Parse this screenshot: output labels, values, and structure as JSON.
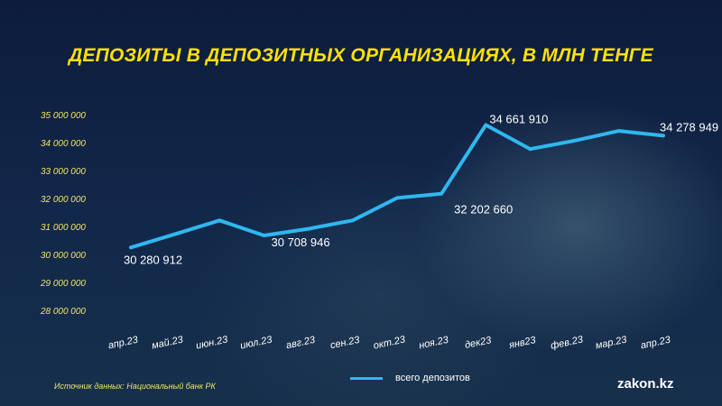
{
  "chart_data": {
    "type": "line",
    "title": "ДЕПОЗИТЫ В ДЕПОЗИТНЫХ ОРГАНИЗАЦИЯХ, В МЛН ТЕНГЕ",
    "categories": [
      "апр.23",
      "май.23",
      "июн.23",
      "июл.23",
      "авг.23",
      "сен.23",
      "окт.23",
      "ноя.23",
      "дек23",
      "янв23",
      "фев.23",
      "мар.23",
      "апр.23"
    ],
    "series": [
      {
        "name": "всего депозитов",
        "values": [
          30280912,
          30760000,
          31250000,
          30708946,
          30950000,
          31250000,
          32050000,
          32202660,
          34661910,
          33800000,
          34100000,
          34450000,
          34278949
        ]
      }
    ],
    "y_ticks": [
      "35 000 000",
      "34 000 000",
      "33 000 000",
      "32 000 000",
      "31 000 000",
      "30 000 000",
      "29 000 000",
      "28 000 000"
    ],
    "ylim": [
      28000000,
      35000000
    ],
    "data_labels": [
      {
        "index": 0,
        "text": "30 280 912"
      },
      {
        "index": 3,
        "text": "30 708 946"
      },
      {
        "index": 7,
        "text": "32 202 660"
      },
      {
        "index": 8,
        "text": "34 661 910"
      },
      {
        "index": 12,
        "text": "34 278 949"
      }
    ],
    "grid": false,
    "legend_position": "bottom-center",
    "line_color": "#2fb8f0"
  },
  "footer": {
    "source": "Источник данных: Национальный банк РК",
    "brand": "zakon.kz"
  },
  "colors": {
    "title": "#ffe100",
    "y_tick": "#f2e36a",
    "background": "#0e1f3e"
  }
}
